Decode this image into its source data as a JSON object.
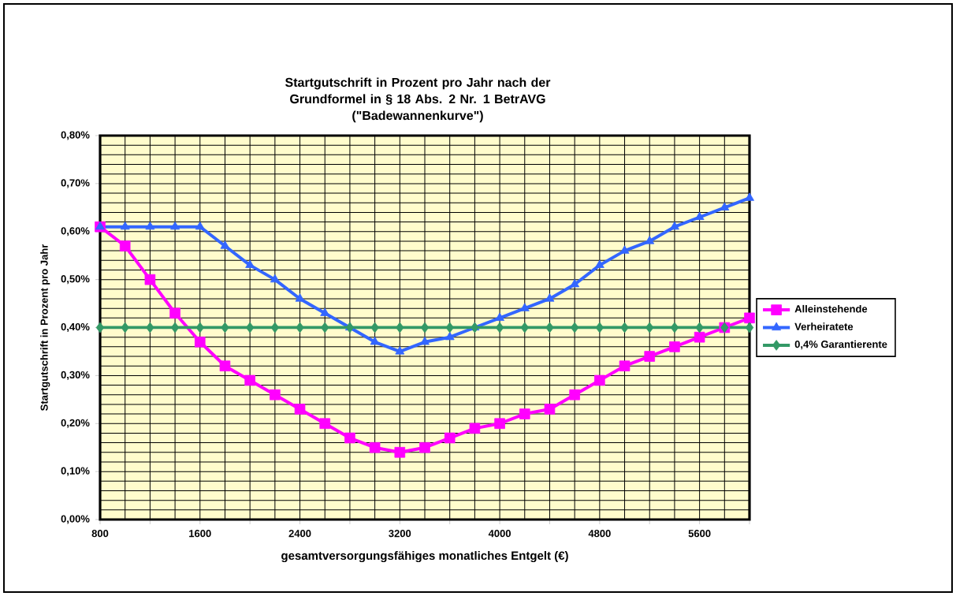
{
  "chart_data": {
    "type": "line",
    "title": "Startgutschrift in Prozent pro Jahr nach der Grundformel in § 18 Abs. 2 Nr. 1 BetrAVG",
    "subtitle": "(\"Badewannenkurve\")",
    "xlabel": "gesamtversorgungsfähiges monatliches Entgelt (€)",
    "ylabel": "Startgutschrift in Prozent pro Jahr",
    "x": [
      800,
      1000,
      1200,
      1400,
      1600,
      1800,
      2000,
      2200,
      2400,
      2600,
      2800,
      3000,
      3200,
      3400,
      3600,
      3800,
      4000,
      4200,
      4400,
      4600,
      4800,
      5000,
      5200,
      5400,
      5600,
      5800,
      6000
    ],
    "series": [
      {
        "name": "Alleinstehende",
        "color": "#ff00ff",
        "marker": "square",
        "values": [
          0.61,
          0.57,
          0.5,
          0.43,
          0.37,
          0.32,
          0.29,
          0.26,
          0.23,
          0.2,
          0.17,
          0.15,
          0.14,
          0.15,
          0.17,
          0.19,
          0.2,
          0.22,
          0.23,
          0.26,
          0.29,
          0.32,
          0.34,
          0.36,
          0.38,
          0.4,
          0.42
        ]
      },
      {
        "name": "Verheiratete",
        "color": "#3366ff",
        "marker": "triangle",
        "values": [
          0.61,
          0.61,
          0.61,
          0.61,
          0.61,
          0.57,
          0.53,
          0.5,
          0.46,
          0.43,
          0.4,
          0.37,
          0.35,
          0.37,
          0.38,
          0.4,
          0.42,
          0.44,
          0.46,
          0.49,
          0.53,
          0.56,
          0.58,
          0.61,
          0.63,
          0.65,
          0.67
        ]
      },
      {
        "name": "0,4% Garantierente",
        "color": "#339966",
        "marker": "diamond",
        "values": [
          0.4,
          0.4,
          0.4,
          0.4,
          0.4,
          0.4,
          0.4,
          0.4,
          0.4,
          0.4,
          0.4,
          0.4,
          0.4,
          0.4,
          0.4,
          0.4,
          0.4,
          0.4,
          0.4,
          0.4,
          0.4,
          0.4,
          0.4,
          0.4,
          0.4,
          0.4,
          0.4
        ]
      }
    ],
    "xlim": [
      800,
      6000
    ],
    "xticks": [
      800,
      {
        "value": 1200,
        "label": null
      },
      1600,
      {
        "value": 2000,
        "label": null
      },
      2400,
      {
        "value": 2800,
        "label": null
      },
      3200,
      {
        "value": 3600,
        "label": null
      },
      4000,
      {
        "value": 4400,
        "label": null
      },
      4800,
      {
        "value": 5200,
        "label": null
      },
      5600,
      {
        "value": 6000,
        "label": null
      }
    ],
    "ylim": [
      0,
      0.8
    ],
    "yticks": [
      {
        "value": 0,
        "label": "0,00%"
      },
      {
        "value": 0.1,
        "label": "0,10%"
      },
      {
        "value": 0.2,
        "label": "0,20%"
      },
      {
        "value": 0.3,
        "label": "0,30%"
      },
      {
        "value": 0.4,
        "label": "0,40%"
      },
      {
        "value": 0.5,
        "label": "0,50%"
      },
      {
        "value": 0.6,
        "label": "0,60%"
      },
      {
        "value": 0.7,
        "label": "0,70%"
      },
      {
        "value": 0.8,
        "label": "0,80%"
      }
    ],
    "grid": true,
    "legend": "right",
    "line_style": "solid"
  }
}
